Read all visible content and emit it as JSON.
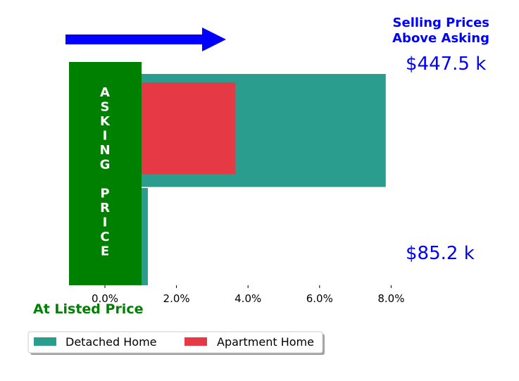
{
  "chart_data": {
    "type": "bar",
    "orientation": "horizontal",
    "x_tick_labels": [
      "0.0%",
      "2.0%",
      "4.0%",
      "6.0%",
      "8.0%"
    ],
    "xlim": [
      -1.0,
      8.5
    ],
    "series": [
      {
        "name": "Detached Home",
        "color": "#2a9d8f",
        "bars": [
          {
            "value": 7.85,
            "y_range": [
              0.93,
              2.0
            ]
          },
          {
            "value": 1.2,
            "y_range": [
              0.0,
              0.92
            ]
          }
        ]
      },
      {
        "name": "Apartment Home",
        "color": "#e63946",
        "bars": [
          {
            "value": 3.65,
            "y_range": [
              1.05,
              1.92
            ]
          }
        ]
      }
    ],
    "annotations": {
      "title_line1": "Selling Prices",
      "title_line2": "Above Asking",
      "top_value": "$447.5 k",
      "bottom_value": "$85.2 k",
      "asking_price_letters": [
        "A",
        "S",
        "K",
        "I",
        "N",
        "G",
        "",
        "P",
        "R",
        "I",
        "C",
        "E"
      ],
      "listed_label": "At Listed Price"
    },
    "colors": {
      "arrow": "#0000ff",
      "asking_box": "#008000",
      "title": "#0000ff",
      "listed": "#008000"
    },
    "legend": {
      "placement": "bottom-left",
      "entries": [
        "Detached Home",
        "Apartment Home"
      ]
    }
  }
}
